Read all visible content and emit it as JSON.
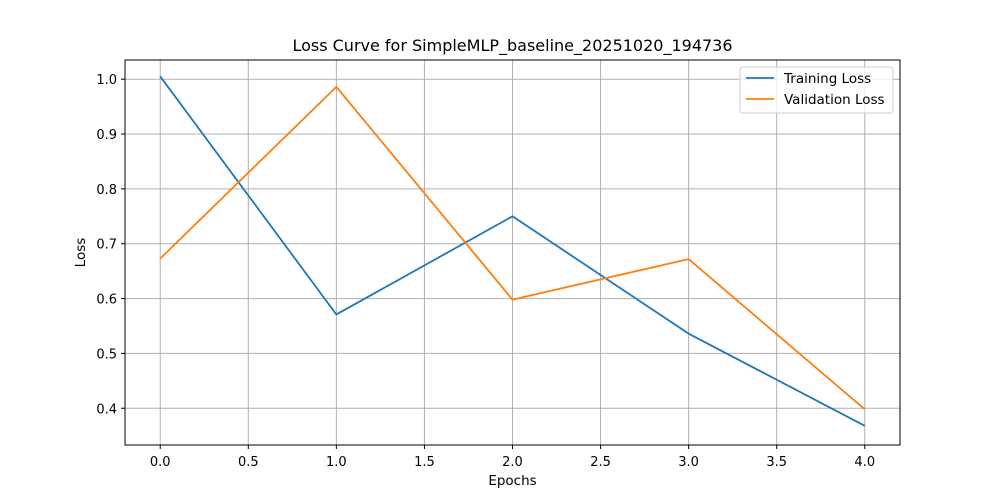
{
  "chart_data": {
    "type": "line",
    "title": "Loss Curve for SimpleMLP_baseline_20251020_194736",
    "xlabel": "Epochs",
    "ylabel": "Loss",
    "x": [
      0,
      1,
      2,
      3,
      4
    ],
    "xlim": [
      -0.2,
      4.2
    ],
    "ylim": [
      0.333,
      1.035
    ],
    "xticks": [
      0,
      0.5,
      1,
      1.5,
      2,
      2.5,
      3,
      3.5,
      4
    ],
    "xtick_labels": [
      "0.0",
      "0.5",
      "1.0",
      "1.5",
      "2.0",
      "2.5",
      "3.0",
      "3.5",
      "4.0"
    ],
    "yticks": [
      0.4,
      0.5,
      0.6,
      0.7,
      0.8,
      0.9,
      1.0
    ],
    "ytick_labels": [
      "0.4",
      "0.5",
      "0.6",
      "0.7",
      "0.8",
      "0.9",
      "1.0"
    ],
    "grid": true,
    "legend_position": "top-right",
    "series": [
      {
        "name": "Training Loss",
        "color": "#1f77b4",
        "values": [
          1.005,
          0.571,
          0.75,
          0.536,
          0.368
        ]
      },
      {
        "name": "Validation Loss",
        "color": "#ff7f0e",
        "values": [
          0.673,
          0.986,
          0.598,
          0.672,
          0.398
        ]
      }
    ]
  }
}
